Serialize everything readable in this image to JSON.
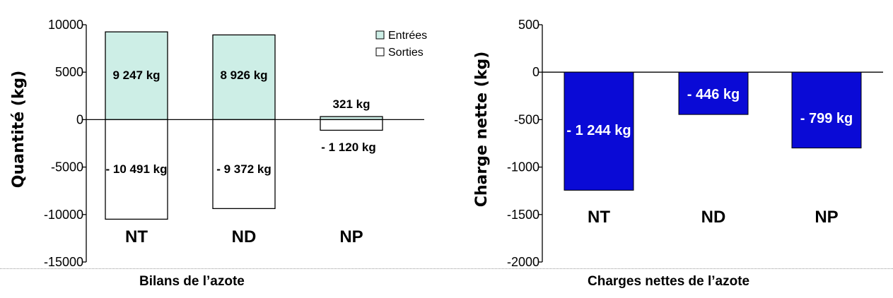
{
  "chart_data": [
    {
      "type": "bar",
      "title": "Bilans de l’azote",
      "ylabel": "Quantité (kg)",
      "xlabel": "",
      "categories": [
        "NT",
        "ND",
        "NP"
      ],
      "ylim": [
        -15000,
        10000
      ],
      "yticks": [
        "10000",
        "5000",
        "0",
        "-5000",
        "-10000",
        "-15000"
      ],
      "tick_values": [
        10000,
        5000,
        0,
        -5000,
        -10000,
        -15000
      ],
      "legend_position": "top-right",
      "series": [
        {
          "name": "Entrées",
          "values": [
            9247,
            8926,
            321
          ],
          "labels": [
            "9 247 kg",
            "8 926 kg",
            "321 kg"
          ],
          "color": "#cdeee6"
        },
        {
          "name": "Sorties",
          "values": [
            -10491,
            -9372,
            -1120
          ],
          "labels": [
            "- 10 491 kg",
            "- 9 372 kg",
            "- 1 120 kg"
          ],
          "color": "#ffffff"
        }
      ]
    },
    {
      "type": "bar",
      "title": "Charges nettes de l’azote",
      "ylabel": "Charge nette (kg)",
      "xlabel": "",
      "categories": [
        "NT",
        "ND",
        "NP"
      ],
      "ylim": [
        -2000,
        500
      ],
      "yticks": [
        "500",
        "0",
        "-500",
        "-1000",
        "-1500",
        "-2000"
      ],
      "tick_values": [
        500,
        0,
        -500,
        -1000,
        -1500,
        -2000
      ],
      "series": [
        {
          "values": [
            -1244,
            -446,
            -799
          ],
          "labels": [
            "- 1 244 kg",
            "- 446 kg",
            "- 799 kg"
          ],
          "color": "#0a0ad6"
        }
      ]
    }
  ]
}
